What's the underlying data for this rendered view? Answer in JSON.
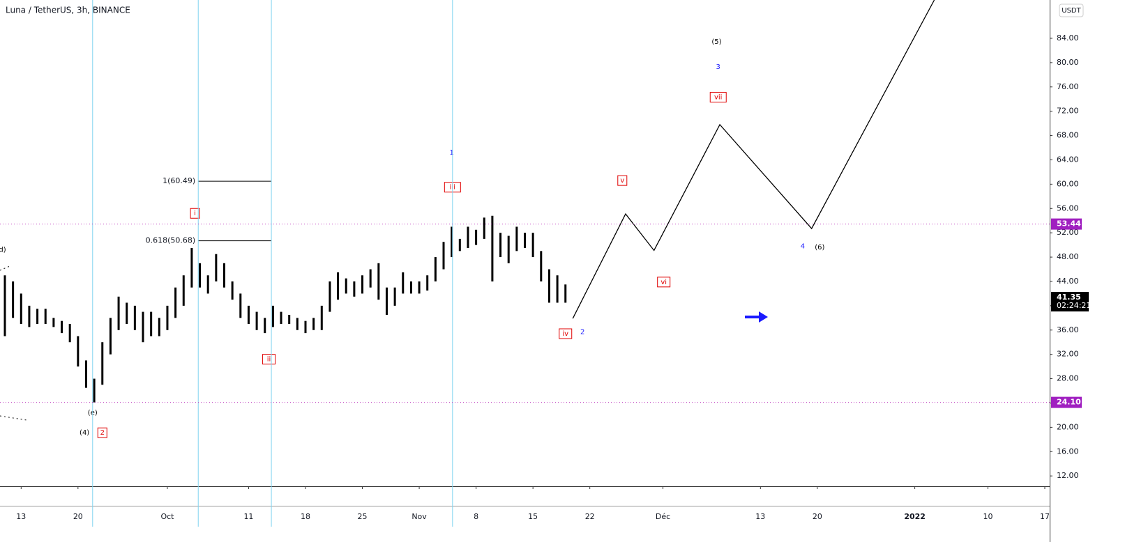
{
  "chart_data": {
    "type": "ohlc",
    "title": "Luna / TetherUS, 3h, BINANCE",
    "currency": "USDT",
    "xlim": [
      -2.6,
      126.6
    ],
    "ylim": [
      10.3,
      90.3
    ],
    "xticks": [
      {
        "value": 0,
        "label": "13"
      },
      {
        "value": 7,
        "label": "20"
      },
      {
        "value": 18,
        "label": "Oct"
      },
      {
        "value": 28,
        "label": "11"
      },
      {
        "value": 35,
        "label": "18"
      },
      {
        "value": 42,
        "label": "25"
      },
      {
        "value": 49,
        "label": "Nov"
      },
      {
        "value": 56,
        "label": "8"
      },
      {
        "value": 63,
        "label": "15"
      },
      {
        "value": 70,
        "label": "22"
      },
      {
        "value": 79,
        "label": "Déc"
      },
      {
        "value": 91,
        "label": "13"
      },
      {
        "value": 98,
        "label": "20"
      },
      {
        "value": 110,
        "label": "2022"
      },
      {
        "value": 119,
        "label": "10"
      },
      {
        "value": 126,
        "label": "17"
      }
    ],
    "yticks": [
      {
        "value": 12,
        "label": "12.00"
      },
      {
        "value": 16,
        "label": "16.00"
      },
      {
        "value": 20,
        "label": "20.00"
      },
      {
        "value": 24,
        "label": "24.00"
      },
      {
        "value": 28,
        "label": "28.00"
      },
      {
        "value": 32,
        "label": "32.00"
      },
      {
        "value": 36,
        "label": "36.00"
      },
      {
        "value": 40,
        "label": "40.00"
      },
      {
        "value": 44,
        "label": "44.00"
      },
      {
        "value": 48,
        "label": "48.00"
      },
      {
        "value": 52,
        "label": "52.00"
      },
      {
        "value": 56,
        "label": "56.00"
      },
      {
        "value": 60,
        "label": "60.00"
      },
      {
        "value": 64,
        "label": "64.00"
      },
      {
        "value": 68,
        "label": "68.00"
      },
      {
        "value": 72,
        "label": "72.00"
      },
      {
        "value": 76,
        "label": "76.00"
      },
      {
        "value": 80,
        "label": "80.00"
      },
      {
        "value": 84,
        "label": "84.00"
      }
    ],
    "x": [
      -2,
      -1,
      0,
      1,
      2,
      3,
      4,
      5,
      6,
      7,
      8,
      9,
      10,
      11,
      12,
      13,
      14,
      15,
      16,
      17,
      18,
      19,
      20,
      21,
      22,
      23,
      24,
      25,
      26,
      27,
      28,
      29,
      30,
      31,
      32,
      33,
      34,
      35,
      36,
      37,
      38,
      39,
      40,
      41,
      42,
      43,
      44,
      45,
      46,
      47,
      48,
      49,
      50,
      51,
      52,
      53,
      54,
      55,
      56,
      57,
      58,
      59,
      60,
      61,
      62,
      63,
      64,
      65,
      66,
      67
    ],
    "high": [
      45,
      44,
      42,
      40,
      39.5,
      39.5,
      38,
      37.5,
      37,
      35,
      31,
      28,
      34,
      38,
      41.5,
      40.5,
      40,
      39,
      39,
      38,
      40,
      43,
      45,
      49.5,
      47,
      45,
      48.5,
      47,
      44,
      42,
      40,
      39,
      38,
      40,
      39,
      38.5,
      38,
      37.5,
      38,
      40,
      44,
      45.5,
      44.5,
      44,
      45,
      46,
      47,
      43,
      43,
      45.5,
      44,
      44,
      45,
      48,
      50.5,
      53,
      51,
      53,
      52.5,
      54.5,
      54.8,
      52,
      51.5,
      53,
      52,
      52,
      49,
      46,
      45,
      43.5
    ],
    "low": [
      35,
      38,
      37,
      36.5,
      37,
      37,
      36.5,
      35.5,
      34,
      30,
      26.5,
      24.1,
      27,
      32,
      36,
      37,
      36,
      34,
      35,
      35,
      36,
      38,
      40,
      43,
      43,
      42,
      44,
      43,
      41,
      38,
      37,
      36,
      35.5,
      36.5,
      37,
      37,
      36,
      35.5,
      36,
      36,
      39,
      41,
      42,
      41.5,
      42,
      43,
      41,
      38.5,
      40,
      42,
      42,
      42,
      42.5,
      44,
      46,
      48,
      49,
      49.5,
      50,
      51,
      44,
      48,
      47,
      49,
      49.5,
      48,
      44,
      40.5,
      40.5,
      40.5
    ],
    "projection": {
      "x": [
        67.9,
        74.4,
        77.9,
        86.0,
        97.3,
        112.4
      ],
      "values": [
        37.9,
        55.1,
        49.1,
        69.8,
        52.7,
        90.3
      ]
    },
    "time_lines": [
      8.8,
      21.8,
      30.8,
      53.1
    ],
    "fib_levels": [
      {
        "label": "1(60.49)",
        "value": 60.49,
        "x": [
          21.8,
          30.8
        ]
      },
      {
        "label": "0.618(50.68)",
        "value": 50.68,
        "x": [
          21.8,
          30.8
        ]
      }
    ],
    "horizontal_lines": {
      "values": [
        53.44,
        24.1
      ],
      "value_labels": [
        "53.44",
        "24.10"
      ]
    },
    "last_price": {
      "value": 41.35,
      "label": "41.35",
      "countdown": "02:24:21"
    },
    "annotations": [
      {
        "text": "d)",
        "x": -2.3,
        "y": 49.2,
        "style": "plain"
      },
      {
        "text": "(e)",
        "x": 8.8,
        "y": 22.4,
        "style": "plain"
      },
      {
        "text": "(4)",
        "x": 7.8,
        "y": 19.1,
        "style": "plain"
      },
      {
        "text": "2",
        "x": 10,
        "y": 19.1,
        "style": "box"
      },
      {
        "text": "i",
        "x": 21.4,
        "y": 55.2,
        "style": "box"
      },
      {
        "text": "ii",
        "x": 30.5,
        "y": 31.2,
        "style": "box"
      },
      {
        "text": "1",
        "x": 53,
        "y": 65.2,
        "style": "blue"
      },
      {
        "text": "iii",
        "x": 53.1,
        "y": 59.5,
        "style": "box"
      },
      {
        "text": "iv",
        "x": 67,
        "y": 35.4,
        "style": "box"
      },
      {
        "text": "2",
        "x": 69.1,
        "y": 35.7,
        "style": "blue"
      },
      {
        "text": "v",
        "x": 74,
        "y": 60.6,
        "style": "box"
      },
      {
        "text": "vi",
        "x": 79.1,
        "y": 43.9,
        "style": "box"
      },
      {
        "text": "vii",
        "x": 85.8,
        "y": 74.3,
        "style": "box"
      },
      {
        "text": "3",
        "x": 85.8,
        "y": 79.3,
        "style": "blue"
      },
      {
        "text": "(5)",
        "x": 85.6,
        "y": 83.4,
        "style": "plain"
      },
      {
        "text": "4",
        "x": 96.2,
        "y": 49.8,
        "style": "blue"
      },
      {
        "text": "(6)",
        "x": 98.3,
        "y": 49.6,
        "style": "plain"
      }
    ]
  }
}
